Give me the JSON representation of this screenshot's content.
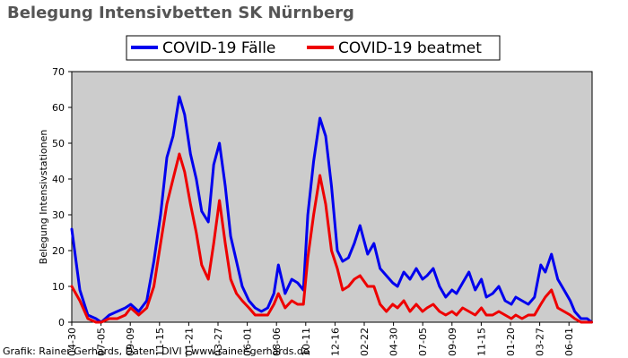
{
  "colors": {
    "background": "#ffffff",
    "plot_background": "#cccccc",
    "faelle": "#0000ee",
    "beatmet": "#ee0000",
    "title": "#555555"
  },
  "credit": "Grafik: Rainer Gerhards, Daten: DIVI | www.rainer-gerhards.de",
  "chart_data": {
    "type": "line",
    "title": "Belegung Intensivbetten SK Nürnberg",
    "xlabel": "",
    "ylabel": "Belegung Intensivstationen",
    "ylim": [
      0,
      70
    ],
    "yticks": [
      0,
      10,
      20,
      30,
      40,
      50,
      60,
      70
    ],
    "grid": false,
    "legend_position": "top",
    "x_tick_labels": [
      "04-30",
      "07-05",
      "09-09",
      "11-15",
      "01-21",
      "03-27",
      "06-01",
      "08-06",
      "10-11",
      "12-16",
      "02-22",
      "04-30",
      "07-05",
      "09-09",
      "11-15",
      "01-20",
      "03-27",
      "06-01"
    ],
    "x_points": [
      "2020-04-30",
      "2020-05-18",
      "2020-06-05",
      "2020-06-23",
      "2020-07-05",
      "2020-07-23",
      "2020-08-10",
      "2020-08-28",
      "2020-09-09",
      "2020-09-27",
      "2020-10-15",
      "2020-10-31",
      "2020-11-15",
      "2020-11-29",
      "2020-12-13",
      "2020-12-27",
      "2021-01-08",
      "2021-01-21",
      "2021-02-03",
      "2021-02-15",
      "2021-03-02",
      "2021-03-14",
      "2021-03-27",
      "2021-04-09",
      "2021-04-21",
      "2021-05-04",
      "2021-05-17",
      "2021-06-01",
      "2021-06-15",
      "2021-06-29",
      "2021-07-13",
      "2021-07-27",
      "2021-08-06",
      "2021-08-21",
      "2021-09-05",
      "2021-09-18",
      "2021-10-01",
      "2021-10-11",
      "2021-10-24",
      "2021-11-07",
      "2021-11-20",
      "2021-12-03",
      "2021-12-16",
      "2021-12-28",
      "2022-01-10",
      "2022-01-23",
      "2022-02-05",
      "2022-02-22",
      "2022-03-08",
      "2022-03-22",
      "2022-04-05",
      "2022-04-19",
      "2022-04-30",
      "2022-05-14",
      "2022-05-28",
      "2022-06-11",
      "2022-06-25",
      "2022-07-05",
      "2022-07-19",
      "2022-08-02",
      "2022-08-16",
      "2022-08-30",
      "2022-09-09",
      "2022-09-23",
      "2022-10-07",
      "2022-10-21",
      "2022-11-04",
      "2022-11-15",
      "2022-11-29",
      "2022-12-13",
      "2022-12-27",
      "2023-01-10",
      "2023-01-20",
      "2023-02-03",
      "2023-02-17",
      "2023-03-03",
      "2023-03-17",
      "2023-03-27",
      "2023-04-10",
      "2023-04-24",
      "2023-05-08",
      "2023-05-22",
      "2023-06-01",
      "2023-06-15",
      "2023-06-29",
      "2023-07-09"
    ],
    "series": [
      {
        "name": "COVID-19 Fälle",
        "color": "#0000ee",
        "values": [
          26,
          9,
          2,
          1,
          0,
          2,
          3,
          4,
          5,
          3,
          6,
          17,
          30,
          46,
          52,
          63,
          58,
          47,
          40,
          31,
          28,
          44,
          50,
          38,
          24,
          17,
          10,
          6,
          4,
          3,
          4,
          8,
          16,
          8,
          12,
          11,
          9,
          30,
          45,
          57,
          52,
          38,
          20,
          17,
          18,
          22,
          27,
          19,
          22,
          15,
          13,
          11,
          10,
          14,
          12,
          15,
          12,
          13,
          15,
          10,
          7,
          9,
          8,
          11,
          14,
          9,
          12,
          7,
          8,
          10,
          6,
          5,
          7,
          6,
          5,
          7,
          16,
          14,
          19,
          12,
          9,
          6,
          3,
          1,
          1,
          0
        ]
      },
      {
        "name": "COVID-19 beatmet",
        "color": "#ee0000",
        "values": [
          10,
          6,
          1,
          0,
          0,
          1,
          1,
          2,
          4,
          2,
          4,
          10,
          22,
          33,
          40,
          47,
          42,
          33,
          25,
          16,
          12,
          22,
          34,
          22,
          12,
          8,
          6,
          4,
          2,
          2,
          2,
          5,
          8,
          4,
          6,
          5,
          5,
          18,
          30,
          41,
          33,
          20,
          15,
          9,
          10,
          12,
          13,
          10,
          10,
          5,
          3,
          5,
          4,
          6,
          3,
          5,
          3,
          4,
          5,
          3,
          2,
          3,
          2,
          4,
          3,
          2,
          4,
          2,
          2,
          3,
          2,
          1,
          2,
          1,
          2,
          2,
          5,
          7,
          9,
          4,
          3,
          2,
          1,
          0,
          0,
          0
        ]
      }
    ]
  }
}
